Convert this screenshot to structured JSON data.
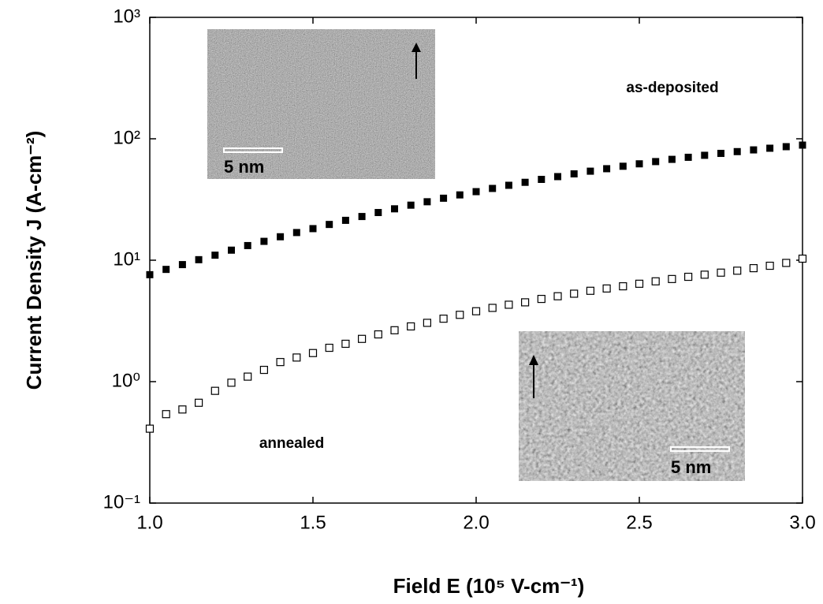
{
  "chart_data": {
    "type": "scatter",
    "xlabel": "Field E (10⁵ V-cm⁻¹)",
    "ylabel": "Current Density J (A-cm⁻²)",
    "yscale": "log",
    "xlim": [
      1.0,
      3.0
    ],
    "ylim": [
      0.1,
      1000
    ],
    "xticks": [
      {
        "value": 1.0,
        "label": "1.0"
      },
      {
        "value": 1.5,
        "label": "1.5"
      },
      {
        "value": 2.0,
        "label": "2.0"
      },
      {
        "value": 2.5,
        "label": "2.5"
      },
      {
        "value": 3.0,
        "label": "3.0"
      }
    ],
    "yticks": [
      {
        "value": 0.1,
        "label": "10⁻¹"
      },
      {
        "value": 1,
        "label": "10⁰"
      },
      {
        "value": 10,
        "label": "10¹"
      },
      {
        "value": 100,
        "label": "10²"
      },
      {
        "value": 1000,
        "label": "10³"
      }
    ],
    "x": [
      1.0,
      1.05,
      1.1,
      1.15,
      1.2,
      1.25,
      1.3,
      1.35,
      1.4,
      1.45,
      1.5,
      1.55,
      1.6,
      1.65,
      1.7,
      1.75,
      1.8,
      1.85,
      1.9,
      1.95,
      2.0,
      2.05,
      2.1,
      2.15,
      2.2,
      2.25,
      2.3,
      2.35,
      2.4,
      2.45,
      2.5,
      2.55,
      2.6,
      2.65,
      2.7,
      2.75,
      2.8,
      2.85,
      2.9,
      2.95,
      3.0
    ],
    "series": [
      {
        "name": "as-deposited",
        "color": "#000000",
        "marker": "filled-square",
        "values": [
          7.6,
          8.4,
          9.2,
          10.1,
          11.0,
          12.1,
          13.2,
          14.3,
          15.6,
          16.9,
          18.2,
          19.7,
          21.3,
          22.9,
          24.7,
          26.5,
          28.4,
          30.3,
          32.4,
          34.5,
          36.7,
          39.0,
          41.4,
          43.8,
          46.3,
          48.8,
          51.4,
          54.1,
          56.7,
          59.4,
          62.2,
          64.9,
          67.7,
          70.4,
          73.1,
          75.8,
          78.4,
          81.0,
          83.6,
          86.1,
          88.7
        ]
      },
      {
        "name": "annealed",
        "color": "#000000",
        "marker": "open-square",
        "values": [
          0.41,
          0.54,
          0.59,
          0.67,
          0.84,
          0.98,
          1.1,
          1.25,
          1.45,
          1.58,
          1.72,
          1.9,
          2.05,
          2.25,
          2.45,
          2.65,
          2.85,
          3.05,
          3.3,
          3.55,
          3.8,
          4.05,
          4.3,
          4.5,
          4.8,
          5.05,
          5.3,
          5.6,
          5.85,
          6.1,
          6.4,
          6.7,
          7.0,
          7.3,
          7.6,
          7.9,
          8.2,
          8.6,
          9.0,
          9.5,
          10.3
        ]
      }
    ],
    "annotations": [
      "as-deposited",
      "annealed",
      "5 nm",
      "5 nm"
    ]
  }
}
